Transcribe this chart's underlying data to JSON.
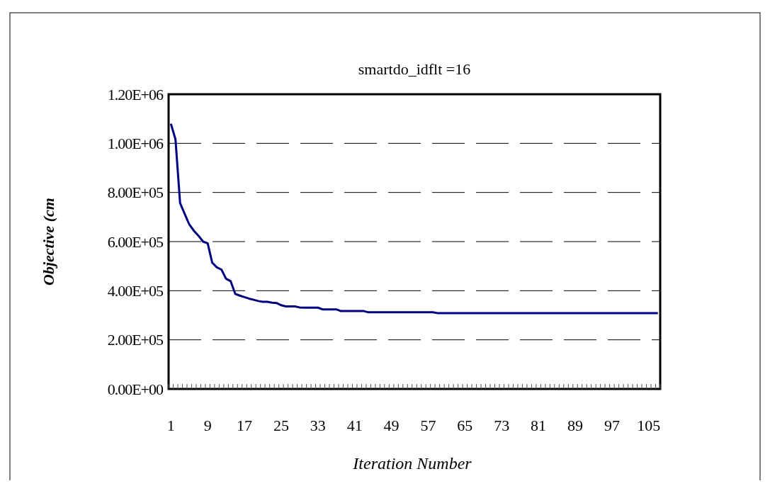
{
  "chart_data": {
    "type": "line",
    "title": "smartdo_idflt =16",
    "xlabel": "Iteration Number",
    "ylabel": "Objective (cm",
    "categories": [
      "1",
      null,
      null,
      null,
      null,
      null,
      null,
      null,
      "9",
      null,
      null,
      null,
      null,
      null,
      null,
      null,
      "17",
      null,
      null,
      null,
      null,
      null,
      null,
      null,
      "25",
      null,
      null,
      null,
      null,
      null,
      null,
      null,
      "33",
      null,
      null,
      null,
      null,
      null,
      null,
      null,
      "41",
      null,
      null,
      null,
      null,
      null,
      null,
      null,
      "49",
      null,
      null,
      null,
      null,
      null,
      null,
      null,
      "57",
      null,
      null,
      null,
      null,
      null,
      null,
      null,
      "65",
      null,
      null,
      null,
      null,
      null,
      null,
      null,
      "73",
      null,
      null,
      null,
      null,
      null,
      null,
      null,
      "81",
      null,
      null,
      null,
      null,
      null,
      null,
      null,
      "89",
      null,
      null,
      null,
      null,
      null,
      null,
      null,
      "97",
      null,
      null,
      null,
      null,
      null,
      null,
      null,
      "105",
      null,
      null
    ],
    "series": [
      {
        "color": "#000080",
        "values": [
          1080000,
          1016000,
          757000,
          713000,
          670000,
          644000,
          624000,
          600000,
          593000,
          514000,
          495000,
          486000,
          449000,
          439000,
          387000,
          380000,
          374000,
          368000,
          363000,
          358000,
          355000,
          355000,
          351000,
          350000,
          341000,
          336000,
          336000,
          336000,
          332000,
          331000,
          331000,
          331000,
          331000,
          324000,
          324000,
          324000,
          324000,
          317000,
          317000,
          317000,
          317000,
          317000,
          317000,
          312000,
          312000,
          312000,
          312000,
          312000,
          312000,
          312000,
          312000,
          312000,
          312000,
          312000,
          312000,
          312000,
          312000,
          312000,
          309000,
          309000,
          309000,
          309000,
          309000,
          309000,
          309000,
          309000,
          309000,
          309000,
          309000,
          309000,
          309000,
          309000,
          309000,
          309000,
          309000,
          309000,
          309000,
          309000,
          309000,
          309000,
          309000,
          309000,
          309000,
          309000,
          309000,
          309000,
          309000,
          309000,
          309000,
          309000,
          309000,
          309000,
          309000,
          309000,
          309000,
          309000,
          309000,
          309000,
          309000,
          309000,
          309000,
          309000,
          309000,
          309000,
          309000,
          309000,
          309000
        ]
      }
    ],
    "ylim": [
      0,
      1200000
    ],
    "yticks": [
      {
        "value": 0,
        "label": "0.00E+00"
      },
      {
        "value": 200000,
        "label": "2.00E+05"
      },
      {
        "value": 400000,
        "label": "4.00E+05"
      },
      {
        "value": 600000,
        "label": "6.00E+05"
      },
      {
        "value": 800000,
        "label": "8.00E+05"
      },
      {
        "value": 1000000,
        "label": "1.00E+06"
      },
      {
        "value": 1200000,
        "label": "1.20E+06"
      }
    ],
    "grid": "y",
    "line_style": "solid",
    "marker": "none"
  }
}
